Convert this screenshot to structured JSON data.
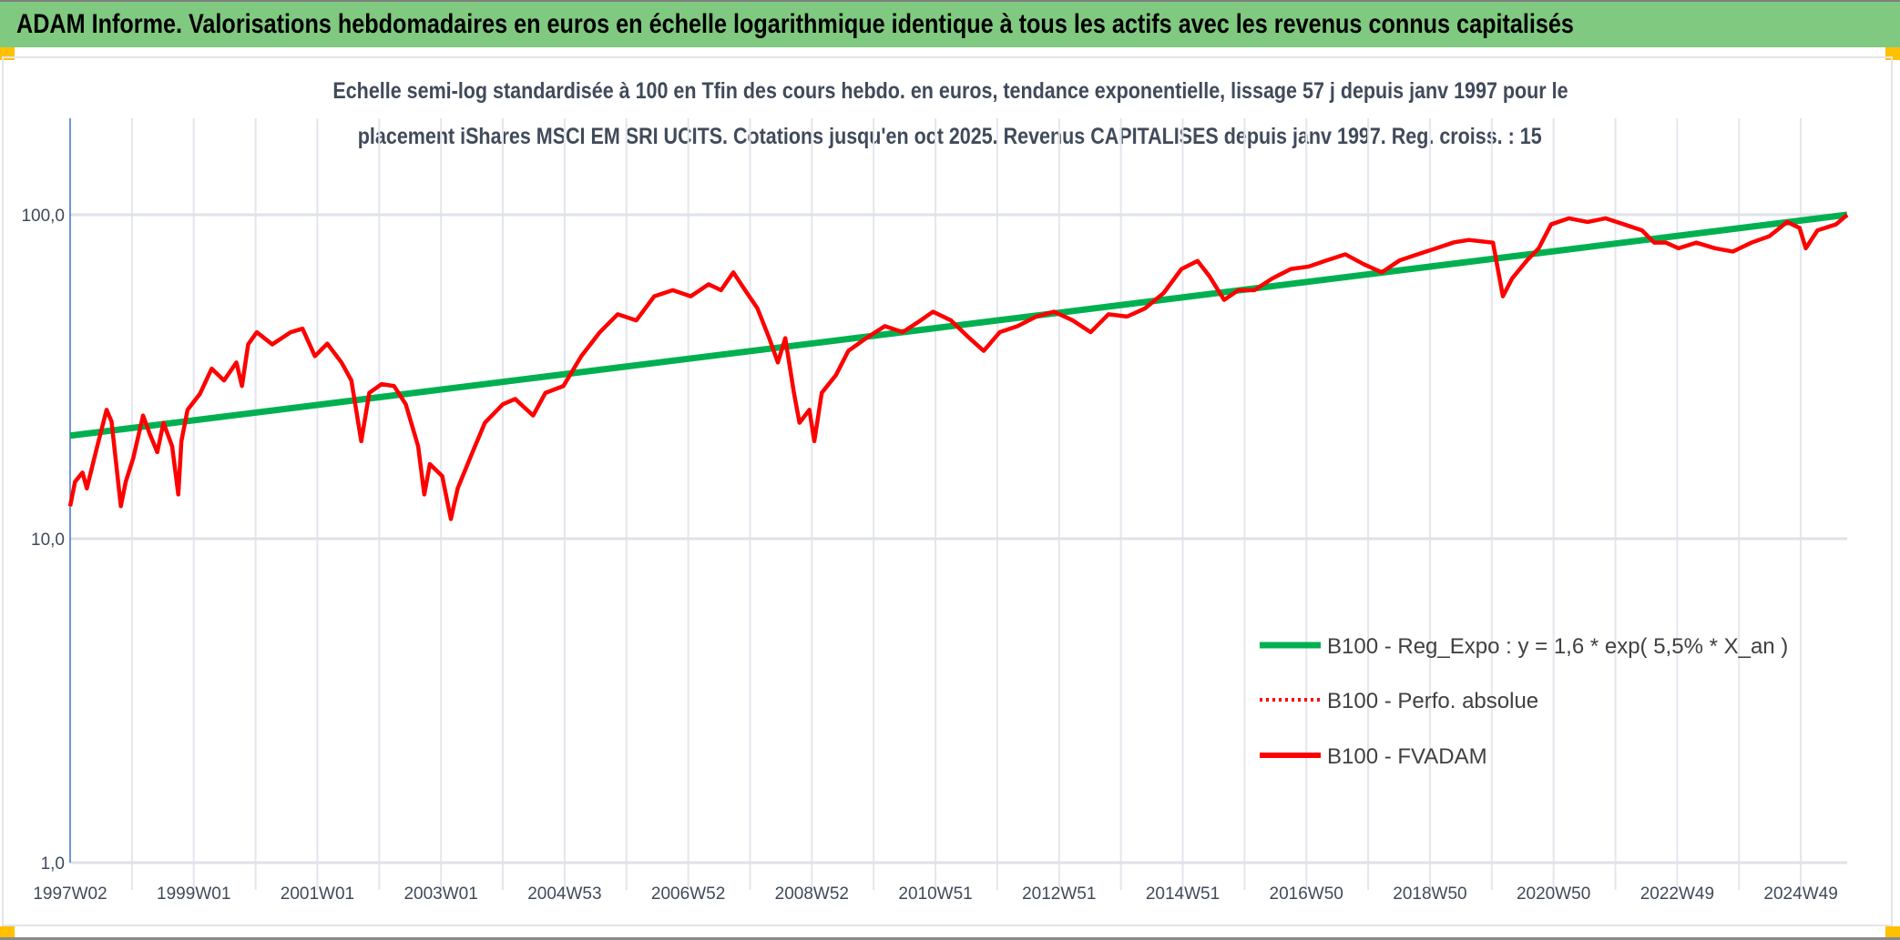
{
  "header": {
    "title": "ADAM Informe. Valorisations hebdomadaires en euros en échelle logarithmique identique à tous les actifs avec les revenus connus capitalisés"
  },
  "colors": {
    "header_bg": "#80c980",
    "regression": "#00b050",
    "series": "#ff0000",
    "handle": "#ffc000"
  },
  "chart_data": {
    "type": "line",
    "title_lines": [
      "Echelle semi-log standardisée à 100 en Tfin des cours hebdo. en euros, tendance exponentielle, lissage 57 j depuis janv 1997 pour le",
      "placement iShares MSCI EM SRI UCITS. Cotations jusqu'en oct 2025. Revenus CAPITALISES depuis janv 1997. Reg. croiss. : 15"
    ],
    "y_scale": "log",
    "ylim": [
      1,
      200
    ],
    "y_ticks": [
      {
        "value": 100,
        "label": "100,0"
      },
      {
        "value": 10,
        "label": "10,0"
      },
      {
        "value": 1,
        "label": "1,0"
      }
    ],
    "xlim": [
      1997.0,
      2025.75
    ],
    "x_gridlines_every_years": 1,
    "x_ticks": [
      {
        "x": 1997.0,
        "label": "1997W02"
      },
      {
        "x": 1999.0,
        "label": "1999W01"
      },
      {
        "x": 2001.0,
        "label": "2001W01"
      },
      {
        "x": 2003.0,
        "label": "2003W01"
      },
      {
        "x": 2005.0,
        "label": "2004W53"
      },
      {
        "x": 2007.0,
        "label": "2006W52"
      },
      {
        "x": 2009.0,
        "label": "2008W52"
      },
      {
        "x": 2011.0,
        "label": "2010W51"
      },
      {
        "x": 2013.0,
        "label": "2012W51"
      },
      {
        "x": 2015.0,
        "label": "2014W51"
      },
      {
        "x": 2017.0,
        "label": "2016W50"
      },
      {
        "x": 2019.0,
        "label": "2018W50"
      },
      {
        "x": 2021.0,
        "label": "2020W50"
      },
      {
        "x": 2023.0,
        "label": "2022W49"
      },
      {
        "x": 2025.0,
        "label": "2024W49"
      }
    ],
    "legend_position": "bottom-right",
    "series": [
      {
        "name": "B100 - Reg_Expo : y = 1,6 * exp( 5,5% *  X_an )",
        "style": "solid-thick",
        "color": "#00b050",
        "points": [
          [
            1997.0,
            20.8
          ],
          [
            2025.75,
            100
          ]
        ]
      },
      {
        "name": "B100 - Perfo. absolue",
        "style": "dotted",
        "color": "#ff0000",
        "points": []
      },
      {
        "name": "B100 - FVADAM",
        "style": "solid",
        "color": "#ff0000",
        "points": [
          [
            1997.0,
            12.6
          ],
          [
            1997.08,
            15
          ],
          [
            1997.2,
            16
          ],
          [
            1997.27,
            14.3
          ],
          [
            1997.43,
            19
          ],
          [
            1997.59,
            25
          ],
          [
            1997.67,
            23
          ],
          [
            1997.82,
            12.6
          ],
          [
            1997.9,
            15
          ],
          [
            1998.02,
            17.7
          ],
          [
            1998.18,
            24
          ],
          [
            1998.29,
            21
          ],
          [
            1998.41,
            18.5
          ],
          [
            1998.51,
            22.8
          ],
          [
            1998.65,
            19.3
          ],
          [
            1998.75,
            13.7
          ],
          [
            1998.8,
            20
          ],
          [
            1998.9,
            25
          ],
          [
            1999.1,
            28
          ],
          [
            1999.29,
            33.5
          ],
          [
            1999.49,
            30.8
          ],
          [
            1999.69,
            35
          ],
          [
            1999.78,
            29.6
          ],
          [
            1999.88,
            39.8
          ],
          [
            2000.02,
            43.4
          ],
          [
            2000.27,
            39.8
          ],
          [
            2000.57,
            43.4
          ],
          [
            2000.76,
            44.5
          ],
          [
            2000.96,
            36.6
          ],
          [
            2001.16,
            40
          ],
          [
            2001.39,
            35
          ],
          [
            2001.55,
            30.8
          ],
          [
            2001.71,
            20
          ],
          [
            2001.84,
            28.2
          ],
          [
            2002.04,
            30
          ],
          [
            2002.24,
            29.6
          ],
          [
            2002.43,
            26
          ],
          [
            2002.63,
            19.3
          ],
          [
            2002.73,
            13.7
          ],
          [
            2002.82,
            17
          ],
          [
            2003.02,
            15.6
          ],
          [
            2003.16,
            11.5
          ],
          [
            2003.27,
            14.3
          ],
          [
            2003.51,
            18.5
          ],
          [
            2003.71,
            22.8
          ],
          [
            2004.0,
            26
          ],
          [
            2004.2,
            27
          ],
          [
            2004.49,
            24
          ],
          [
            2004.69,
            28.2
          ],
          [
            2004.98,
            29.6
          ],
          [
            2005.27,
            36.6
          ],
          [
            2005.57,
            43.4
          ],
          [
            2005.86,
            49.3
          ],
          [
            2006.16,
            47.2
          ],
          [
            2006.45,
            56
          ],
          [
            2006.75,
            58.5
          ],
          [
            2007.04,
            56
          ],
          [
            2007.33,
            61
          ],
          [
            2007.53,
            58.5
          ],
          [
            2007.73,
            66.4
          ],
          [
            2007.92,
            58.5
          ],
          [
            2008.12,
            51.4
          ],
          [
            2008.31,
            41.6
          ],
          [
            2008.45,
            35
          ],
          [
            2008.57,
            41.6
          ],
          [
            2008.71,
            28.2
          ],
          [
            2008.8,
            22.8
          ],
          [
            2008.96,
            25
          ],
          [
            2009.04,
            20
          ],
          [
            2009.16,
            28.2
          ],
          [
            2009.39,
            32
          ],
          [
            2009.59,
            38
          ],
          [
            2009.88,
            41.6
          ],
          [
            2010.18,
            45.3
          ],
          [
            2010.47,
            43.4
          ],
          [
            2010.76,
            47.2
          ],
          [
            2010.96,
            50.2
          ],
          [
            2011.25,
            47.2
          ],
          [
            2011.55,
            41.6
          ],
          [
            2011.78,
            38
          ],
          [
            2012.04,
            43.4
          ],
          [
            2012.33,
            45.3
          ],
          [
            2012.63,
            48.5
          ],
          [
            2012.92,
            50.2
          ],
          [
            2013.22,
            47.2
          ],
          [
            2013.51,
            43.4
          ],
          [
            2013.8,
            49.3
          ],
          [
            2014.1,
            48.5
          ],
          [
            2014.39,
            51.4
          ],
          [
            2014.69,
            57.3
          ],
          [
            2014.98,
            68
          ],
          [
            2015.24,
            72
          ],
          [
            2015.43,
            64.7
          ],
          [
            2015.67,
            54.6
          ],
          [
            2015.9,
            58.5
          ],
          [
            2016.16,
            58.5
          ],
          [
            2016.45,
            63.6
          ],
          [
            2016.75,
            68
          ],
          [
            2017.04,
            69.2
          ],
          [
            2017.33,
            72.3
          ],
          [
            2017.63,
            75.5
          ],
          [
            2017.92,
            70.5
          ],
          [
            2018.22,
            66.4
          ],
          [
            2018.51,
            72.3
          ],
          [
            2018.8,
            75.5
          ],
          [
            2019.1,
            78.8
          ],
          [
            2019.39,
            82.2
          ],
          [
            2019.63,
            83.6
          ],
          [
            2020.02,
            82
          ],
          [
            2020.18,
            56
          ],
          [
            2020.33,
            63.6
          ],
          [
            2020.57,
            72.3
          ],
          [
            2020.76,
            78.8
          ],
          [
            2020.96,
            93.4
          ],
          [
            2021.25,
            97.5
          ],
          [
            2021.55,
            95
          ],
          [
            2021.84,
            97.5
          ],
          [
            2022.14,
            93.4
          ],
          [
            2022.43,
            89.5
          ],
          [
            2022.63,
            82
          ],
          [
            2022.82,
            82
          ],
          [
            2023.02,
            78.8
          ],
          [
            2023.31,
            82
          ],
          [
            2023.61,
            78.8
          ],
          [
            2023.9,
            77
          ],
          [
            2024.2,
            82
          ],
          [
            2024.49,
            85.8
          ],
          [
            2024.78,
            95
          ],
          [
            2024.98,
            91
          ],
          [
            2025.08,
            78.8
          ],
          [
            2025.27,
            89.5
          ],
          [
            2025.57,
            93.4
          ],
          [
            2025.75,
            100
          ]
        ]
      }
    ]
  }
}
